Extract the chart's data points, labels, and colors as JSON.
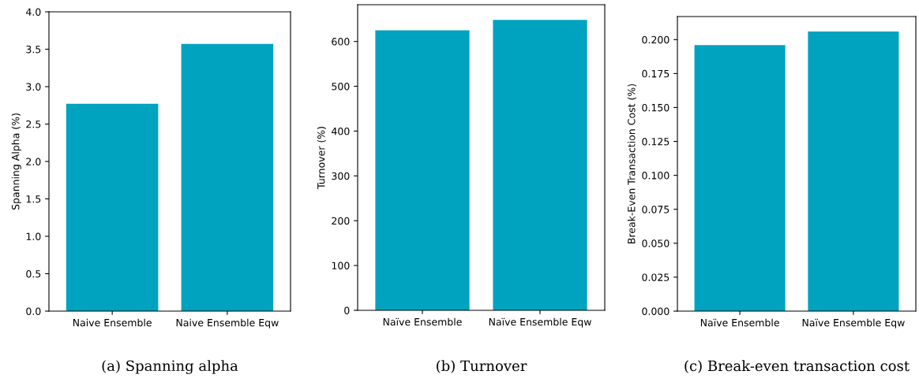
{
  "chart_data": [
    {
      "type": "bar",
      "categories": [
        "Naive Ensemble",
        "Naive Ensemble Eqw"
      ],
      "values": [
        2.77,
        3.57
      ],
      "color": "#00a3bf",
      "ylabel": "Spanning Alpha (%)",
      "ylim": [
        0,
        4
      ],
      "yticks": [
        {
          "value": 0,
          "label": "0.0"
        },
        {
          "value": 0.5,
          "label": "0.5"
        },
        {
          "value": 1,
          "label": "1.0"
        },
        {
          "value": 1.5,
          "label": "1.5"
        },
        {
          "value": 2,
          "label": "2.0"
        },
        {
          "value": 2.5,
          "label": "2.5"
        },
        {
          "value": 3,
          "label": "3.0"
        },
        {
          "value": 3.5,
          "label": "3.5"
        },
        {
          "value": 4,
          "label": "4.0"
        }
      ],
      "grid": false,
      "annotations": [
        "(a) Spanning alpha"
      ]
    },
    {
      "type": "bar",
      "categories": [
        "Naïve Ensemble",
        "Naïve Ensemble Eqw"
      ],
      "values": [
        625,
        648
      ],
      "color": "#00a3bf",
      "ylabel": "Turnover (%)",
      "ylim": [
        0,
        682
      ],
      "yticks": [
        0,
        100,
        200,
        300,
        400,
        500,
        600
      ],
      "grid": false,
      "annotations": [
        "(b) Turnover"
      ]
    },
    {
      "type": "bar",
      "categories": [
        "Naïve Ensemble",
        "Naïve Ensemble Eqw"
      ],
      "values": [
        0.196,
        0.206
      ],
      "color": "#00a3bf",
      "ylabel": "Break-Even Transaction Cost (%)",
      "ylim": [
        0,
        0.217
      ],
      "yticks": [
        {
          "value": 0,
          "label": "0.000"
        },
        {
          "value": 0.025,
          "label": "0.025"
        },
        {
          "value": 0.05,
          "label": "0.050"
        },
        {
          "value": 0.075,
          "label": "0.075"
        },
        {
          "value": 0.1,
          "label": "0.100"
        },
        {
          "value": 0.125,
          "label": "0.125"
        },
        {
          "value": 0.15,
          "label": "0.150"
        },
        {
          "value": 0.175,
          "label": "0.175"
        },
        {
          "value": 0.2,
          "label": "0.200"
        }
      ],
      "grid": false,
      "annotations": [
        "(c) Break-even transaction cost"
      ]
    }
  ]
}
